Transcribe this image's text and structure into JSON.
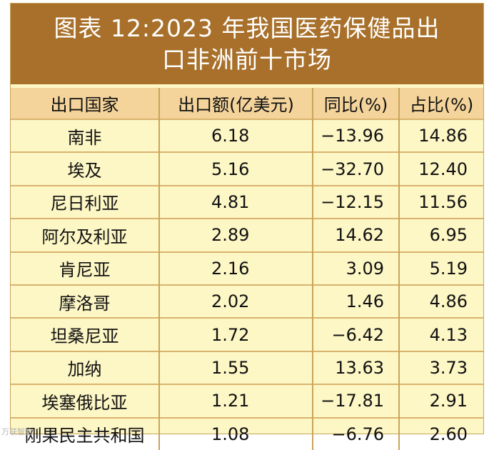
{
  "title": {
    "line1": "图表 12:2023 年我国医药保健品出",
    "line2": "口非洲前十市场"
  },
  "table": {
    "headers": [
      "出口国家",
      "出口额(亿美元)",
      "同比(%)",
      "占比(%)"
    ],
    "rows": [
      [
        "南非",
        "6.18",
        "−13.96",
        "14.86"
      ],
      [
        "埃及",
        "5.16",
        "−32.70",
        "12.40"
      ],
      [
        "尼日利亚",
        "4.81",
        "−12.15",
        "11.56"
      ],
      [
        "阿尔及利亚",
        "2.89",
        "14.62",
        "6.95"
      ],
      [
        "肯尼亚",
        "2.16",
        "3.09",
        "5.19"
      ],
      [
        "摩洛哥",
        "2.02",
        "1.46",
        "4.86"
      ],
      [
        "坦桑尼亚",
        "1.72",
        "−6.42",
        "4.13"
      ],
      [
        "加纳",
        "1.55",
        "13.63",
        "3.73"
      ],
      [
        "埃塞俄比亚",
        "1.21",
        "−17.81",
        "2.91"
      ],
      [
        "刚果民主共和国",
        "1.08",
        "−6.76",
        "2.60"
      ]
    ]
  },
  "watermark": "万联智信",
  "colors": {
    "title_bg": "#a8702a",
    "header_bg": "#f4d49b",
    "body_bg": "#fdf6c5",
    "grid": "#c9a45a"
  }
}
